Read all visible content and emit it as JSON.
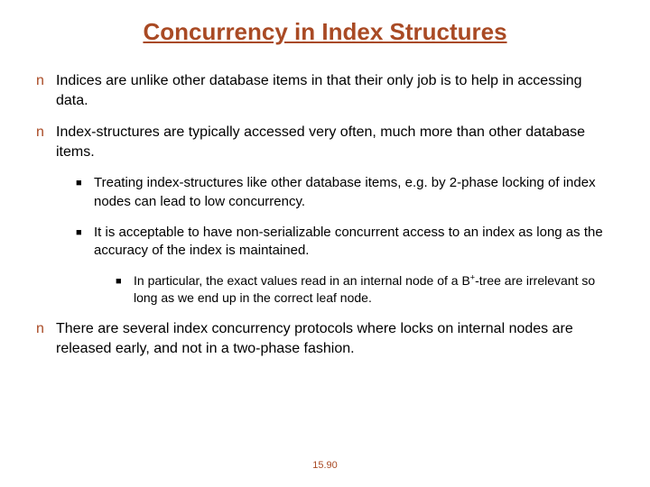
{
  "colors": {
    "title": "#a94a24",
    "bullet_n": "#a94a24",
    "bullet_body": "#000000",
    "square": "#000000",
    "slide_number": "#a94a24",
    "background": "#ffffff"
  },
  "title": "Concurrency in Index Structures",
  "bullets": {
    "b1": "Indices are unlike other database items in that their only job is to help in accessing data.",
    "b2": "Index-structures are typically accessed very often, much more than other database items.",
    "b2a": "Treating index-structures like other database items, e.g. by 2-phase locking of index nodes can lead to low concurrency.",
    "b2b": "It is acceptable to have non-serializable concurrent access to an index as long as the accuracy of the index is maintained.",
    "b2b1_prefix": "In particular, the exact values read in an internal node of a B",
    "b2b1_suffix": "-tree are irrelevant so long as we end up in the correct leaf node.",
    "b3": "There are several index concurrency protocols where locks on internal nodes are released early, and not in a two-phase fashion."
  },
  "markers": {
    "n": "n",
    "square": "■",
    "plus": "+"
  },
  "slide_number": "15.90"
}
